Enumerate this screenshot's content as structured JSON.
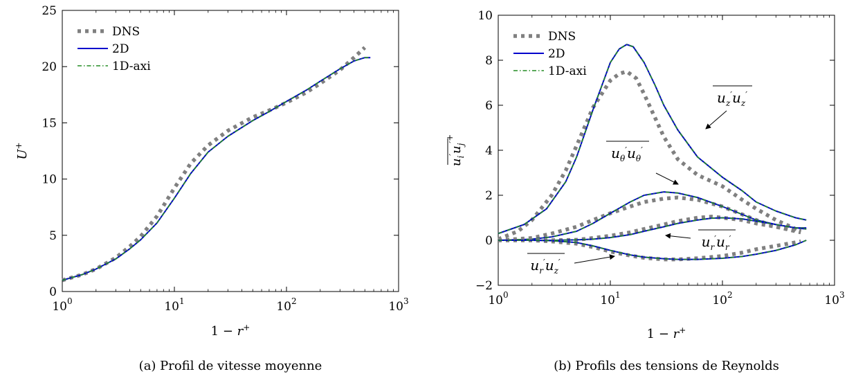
{
  "chart_data": [
    {
      "type": "line",
      "caption": "(a) Profil de vitesse moyenne",
      "xlabel": "1 − r+",
      "ylabel": "U+",
      "xscale": "log",
      "xlim": [
        1,
        1000
      ],
      "ylim": [
        0,
        25
      ],
      "xticks": [
        {
          "base": "10",
          "exp": "0"
        },
        {
          "base": "10",
          "exp": "1"
        },
        {
          "base": "10",
          "exp": "2"
        },
        {
          "base": "10",
          "exp": "3"
        }
      ],
      "yticks": [
        "0",
        "5",
        "10",
        "15",
        "20",
        "25"
      ],
      "legend": {
        "position": "top-left",
        "entries": [
          "DNS",
          "2D",
          "1D-axi"
        ]
      },
      "series": [
        {
          "name": "DNS",
          "color": "#808080",
          "style": "dotted",
          "x": [
            1,
            1.5,
            2,
            3,
            4,
            5,
            7,
            10,
            14,
            20,
            30,
            50,
            70,
            100,
            150,
            200,
            300,
            400,
            500
          ],
          "y": [
            1.0,
            1.5,
            2.0,
            3.0,
            4.0,
            4.9,
            6.7,
            9.2,
            11.4,
            13.0,
            14.3,
            15.5,
            16.1,
            16.8,
            17.7,
            18.5,
            19.7,
            20.8,
            21.7
          ]
        },
        {
          "name": "2D",
          "color": "#0000cc",
          "style": "solid",
          "x": [
            1,
            1.5,
            2,
            3,
            4,
            5,
            7,
            10,
            14,
            20,
            30,
            50,
            70,
            100,
            150,
            200,
            300,
            400,
            500,
            560
          ],
          "y": [
            1.0,
            1.5,
            2.0,
            2.9,
            3.8,
            4.6,
            6.1,
            8.3,
            10.5,
            12.4,
            13.8,
            15.2,
            16.0,
            16.9,
            17.9,
            18.7,
            19.8,
            20.5,
            20.8,
            20.8
          ]
        },
        {
          "name": "1D-axi",
          "color": "#228B22",
          "style": "dashdot",
          "x": [
            1,
            1.5,
            2,
            3,
            4,
            5,
            7,
            10,
            14,
            20,
            30,
            50,
            70,
            100,
            150,
            200,
            300,
            400,
            500,
            560
          ],
          "y": [
            1.0,
            1.5,
            2.0,
            2.9,
            3.8,
            4.6,
            6.1,
            8.3,
            10.5,
            12.4,
            13.8,
            15.2,
            16.0,
            16.9,
            17.9,
            18.7,
            19.8,
            20.5,
            20.8,
            20.8
          ]
        }
      ]
    },
    {
      "type": "line",
      "caption": "(b) Profils des tensions de Reynolds",
      "xlabel": "1 − r+",
      "ylabel": "u'i u'j +",
      "xscale": "log",
      "xlim": [
        1,
        1000
      ],
      "ylim": [
        -2,
        10
      ],
      "xticks": [
        {
          "base": "10",
          "exp": "0"
        },
        {
          "base": "10",
          "exp": "1"
        },
        {
          "base": "10",
          "exp": "2"
        },
        {
          "base": "10",
          "exp": "3"
        }
      ],
      "yticks": [
        "−2",
        "0",
        "2",
        "4",
        "6",
        "8",
        "10"
      ],
      "legend": {
        "position": "top-left",
        "entries": [
          "DNS",
          "2D",
          "1D-axi"
        ]
      },
      "annotations": [
        {
          "id": "uz",
          "label": "u'z u'z"
        },
        {
          "id": "ut",
          "label": "u'θ u'θ"
        },
        {
          "id": "ur",
          "label": "u'r u'r"
        },
        {
          "id": "urz",
          "label": "u'r u'z"
        }
      ],
      "groups": [
        {
          "component": "uz",
          "dns": {
            "x": [
              1,
              1.5,
              2,
              3,
              4,
              5,
              7,
              10,
              12,
              14,
              17,
              20,
              30,
              40,
              60,
              100,
              150,
              200,
              300,
              500
            ],
            "y": [
              0.05,
              0.4,
              0.9,
              2.0,
              3.1,
              4.2,
              5.9,
              7.1,
              7.4,
              7.5,
              7.2,
              6.5,
              4.6,
              3.6,
              2.9,
              2.4,
              1.8,
              1.4,
              0.9,
              0.4
            ]
          },
          "model": {
            "x": [
              1,
              1.7,
              2.7,
              4,
              5,
              7,
              10,
              12,
              14,
              16,
              20,
              25,
              30,
              40,
              60,
              100,
              150,
              200,
              300,
              450,
              560
            ],
            "y": [
              0.3,
              0.7,
              1.4,
              2.6,
              3.7,
              5.8,
              7.9,
              8.5,
              8.7,
              8.6,
              7.9,
              6.9,
              6.0,
              4.9,
              3.7,
              2.8,
              2.2,
              1.7,
              1.3,
              1.0,
              0.9
            ]
          }
        },
        {
          "component": "ut",
          "dns": {
            "x": [
              1,
              2,
              3,
              5,
              7,
              10,
              15,
              20,
              30,
              40,
              60,
              100,
              200,
              300,
              500
            ],
            "y": [
              0.0,
              0.1,
              0.3,
              0.6,
              0.9,
              1.2,
              1.5,
              1.7,
              1.85,
              1.9,
              1.8,
              1.5,
              0.9,
              0.6,
              0.35
            ]
          },
          "model": {
            "x": [
              1,
              2,
              3,
              5,
              7,
              10,
              15,
              20,
              30,
              40,
              60,
              100,
              150,
              200,
              300,
              450,
              560
            ],
            "y": [
              0.0,
              0.05,
              0.15,
              0.4,
              0.75,
              1.2,
              1.7,
              2.0,
              2.15,
              2.1,
              1.9,
              1.5,
              1.15,
              0.9,
              0.7,
              0.55,
              0.55
            ]
          }
        },
        {
          "component": "ur",
          "dns": {
            "x": [
              1,
              3,
              5,
              7,
              10,
              15,
              20,
              30,
              40,
              60,
              80,
              100,
              150,
              200,
              300,
              500
            ],
            "y": [
              0.0,
              0.0,
              0.02,
              0.1,
              0.2,
              0.35,
              0.5,
              0.7,
              0.85,
              1.0,
              1.05,
              1.0,
              0.9,
              0.75,
              0.6,
              0.4
            ]
          },
          "model": {
            "x": [
              1,
              3,
              5,
              7,
              10,
              15,
              20,
              30,
              40,
              60,
              80,
              100,
              150,
              200,
              300,
              450,
              560
            ],
            "y": [
              0.0,
              0.0,
              0.02,
              0.05,
              0.12,
              0.25,
              0.4,
              0.6,
              0.75,
              0.9,
              0.98,
              1.0,
              0.95,
              0.85,
              0.7,
              0.55,
              0.5
            ]
          }
        },
        {
          "component": "urz",
          "dns": {
            "x": [
              1,
              2,
              3,
              5,
              7,
              10,
              15,
              20,
              30,
              40,
              60,
              100,
              150,
              200,
              300,
              500
            ],
            "y": [
              0.0,
              0.0,
              -0.05,
              -0.15,
              -0.3,
              -0.5,
              -0.68,
              -0.78,
              -0.85,
              -0.85,
              -0.8,
              -0.7,
              -0.55,
              -0.4,
              -0.25,
              -0.05
            ]
          },
          "model": {
            "x": [
              1,
              2,
              3,
              5,
              7,
              10,
              15,
              20,
              30,
              40,
              60,
              100,
              150,
              200,
              300,
              450,
              560
            ],
            "y": [
              0.0,
              0.0,
              -0.02,
              -0.1,
              -0.25,
              -0.45,
              -0.65,
              -0.75,
              -0.82,
              -0.85,
              -0.85,
              -0.8,
              -0.72,
              -0.62,
              -0.45,
              -0.2,
              0.0
            ]
          }
        }
      ],
      "series_styles": {
        "DNS": {
          "color": "#808080",
          "style": "dotted"
        },
        "2D": {
          "color": "#0000cc",
          "style": "solid"
        },
        "1D-axi": {
          "color": "#228B22",
          "style": "dashdot"
        }
      }
    }
  ]
}
